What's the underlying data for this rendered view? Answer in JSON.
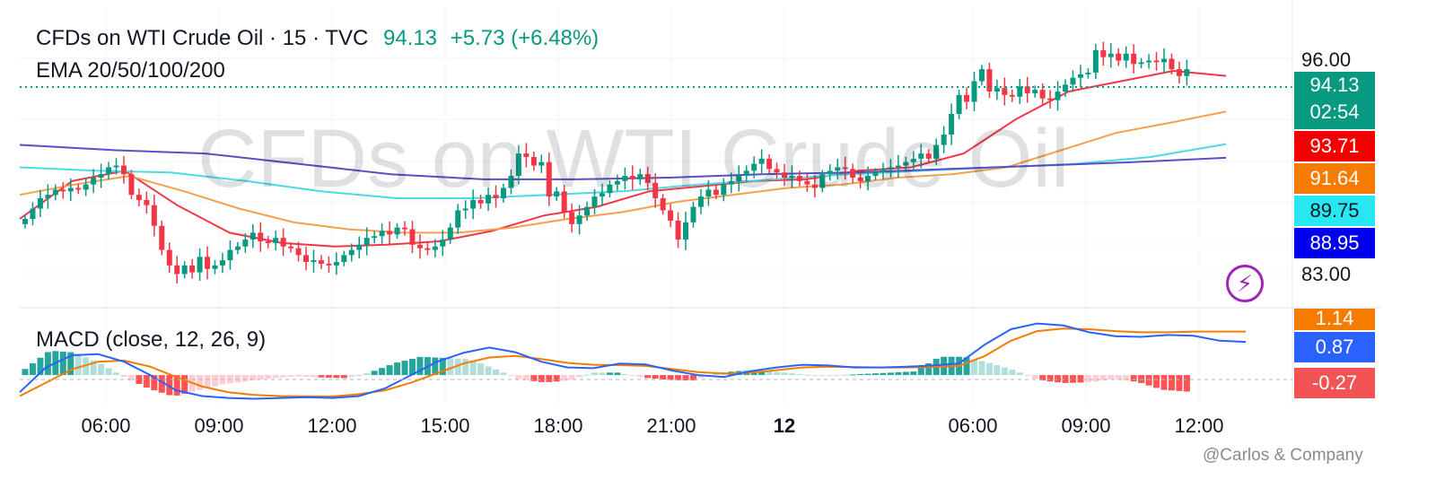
{
  "header": {
    "symbol": "CFDs on WTI Crude Oil · 15 · TVC",
    "last": "94.13",
    "change": "+5.73 (+6.48%)",
    "indicator": "EMA 20/50/100/200",
    "macd_label": "MACD (close, 12, 26, 9)"
  },
  "watermark": "CFDs on WTI Crude Oil",
  "credit": "@Carlos & Company",
  "price_axis": {
    "labels": [
      "96.00",
      "83.00"
    ],
    "tags": [
      {
        "text": "94.13",
        "sub": "02:54",
        "color": "#089981"
      },
      {
        "text": "93.71",
        "color": "#f20000"
      },
      {
        "text": "91.64",
        "color": "#f57c00"
      },
      {
        "text": "89.75",
        "color": "#26e7f2"
      },
      {
        "text": "88.95",
        "color": "#0000ee"
      }
    ]
  },
  "macd_axis": {
    "tags": [
      {
        "text": "1.14",
        "color": "#f57c00"
      },
      {
        "text": "0.87",
        "color": "#2962ff"
      },
      {
        "text": "-0.27",
        "color": "#f25455"
      }
    ]
  },
  "time_axis": [
    {
      "label": "06:00",
      "bold": false
    },
    {
      "label": "09:00",
      "bold": false
    },
    {
      "label": "12:00",
      "bold": false
    },
    {
      "label": "15:00",
      "bold": false
    },
    {
      "label": "18:00",
      "bold": false
    },
    {
      "label": "21:00",
      "bold": false
    },
    {
      "label": "12",
      "bold": true
    },
    {
      "label": "06:00",
      "bold": false
    },
    {
      "label": "09:00",
      "bold": false
    },
    {
      "label": "12:00",
      "bold": false
    }
  ],
  "chart_data": {
    "type": "candlestick",
    "interval": "15",
    "ylim": [
      80.4,
      97.7
    ],
    "last_price": 94.13,
    "close": [
      85.4,
      86.0,
      86.6,
      86.8,
      87.1,
      87.0,
      87.2,
      87.1,
      87.4,
      87.8,
      88.0,
      88.4,
      88.5,
      88.0,
      86.8,
      86.5,
      86.2,
      85.0,
      83.6,
      82.7,
      82.2,
      82.7,
      82.3,
      83.2,
      82.5,
      82.7,
      83.0,
      83.6,
      83.8,
      84.2,
      84.6,
      84.1,
      84.0,
      84.3,
      83.8,
      83.7,
      83.3,
      82.9,
      83.0,
      82.8,
      82.7,
      82.9,
      83.3,
      83.6,
      83.9,
      84.3,
      84.4,
      84.7,
      84.5,
      84.9,
      84.8,
      83.9,
      83.7,
      83.6,
      83.8,
      84.2,
      84.9,
      85.9,
      86.0,
      86.5,
      86.3,
      86.8,
      86.6,
      87.2,
      87.9,
      89.2,
      89.0,
      88.5,
      88.7,
      86.7,
      87.0,
      85.8,
      85.1,
      85.6,
      86.1,
      86.7,
      86.9,
      87.4,
      87.6,
      87.9,
      87.7,
      88.0,
      87.5,
      86.6,
      85.9,
      85.3,
      84.2,
      85.2,
      86.1,
      86.7,
      87.1,
      86.8,
      87.4,
      87.6,
      87.9,
      88.2,
      88.6,
      88.9,
      88.3,
      88.1,
      87.8,
      87.9,
      87.6,
      87.4,
      87.2,
      88.0,
      88.2,
      88.4,
      88.3,
      87.8,
      87.6,
      87.9,
      88.1,
      88.3,
      88.4,
      88.5,
      88.7,
      88.9,
      89.2,
      88.9,
      89.7,
      90.3,
      91.5,
      92.6,
      92.2,
      93.4,
      94.1,
      92.8,
      93.0,
      92.6,
      92.5,
      93.1,
      92.7,
      92.9,
      92.4,
      92.3,
      92.8,
      93.2,
      93.6,
      93.8,
      93.9,
      95.2,
      94.8,
      95.0,
      94.6,
      95.0,
      94.4,
      94.5,
      94.6,
      94.5,
      94.7,
      94.1,
      93.7,
      94.1
    ],
    "ema": [
      {
        "name": "EMA 20",
        "color": "#f23645",
        "last": 93.71,
        "values": [
          85.4,
          87.6,
          88.2,
          86.2,
          84.6,
          84.0,
          83.8,
          83.9,
          84.1,
          84.7,
          85.6,
          86.1,
          87.0,
          87.3,
          87.6,
          87.7,
          88.2,
          88.4,
          89.2,
          91.2,
          92.8,
          93.4,
          94.0,
          93.71
        ]
      },
      {
        "name": "EMA 50",
        "color": "#f5a04c",
        "last": 91.64,
        "values": [
          86.8,
          87.4,
          87.9,
          87.0,
          86.0,
          85.2,
          84.8,
          84.6,
          84.6,
          84.9,
          85.4,
          85.8,
          86.4,
          86.8,
          87.2,
          87.4,
          87.8,
          88.0,
          88.4,
          89.4,
          90.4,
          91.0,
          91.64
        ]
      },
      {
        "name": "EMA 100",
        "color": "#4dd9e5",
        "last": 89.75,
        "values": [
          88.4,
          88.2,
          88.1,
          87.6,
          87.0,
          86.6,
          86.6,
          86.8,
          87.0,
          87.4,
          87.7,
          88.0,
          88.2,
          88.4,
          88.6,
          89.0,
          89.75
        ]
      },
      {
        "name": "EMA 200",
        "color": "#5b4fc4",
        "last": 88.95,
        "values": [
          89.7,
          89.4,
          89.2,
          88.6,
          88.0,
          87.7,
          87.7,
          87.8,
          88.0,
          88.1,
          88.3,
          88.5,
          88.7,
          88.95
        ]
      }
    ],
    "macd": {
      "params": "close, 12, 26, 9",
      "ylim": [
        -0.75,
        1.6
      ],
      "macd_line": {
        "color": "#2962ff",
        "last": 0.87,
        "values": [
          -0.45,
          0.2,
          0.52,
          0.55,
          0.35,
          0.0,
          -0.4,
          -0.55,
          -0.6,
          -0.62,
          -0.6,
          -0.58,
          -0.6,
          -0.55,
          -0.35,
          0.0,
          0.35,
          0.58,
          0.72,
          0.6,
          0.35,
          0.2,
          0.18,
          0.3,
          0.28,
          0.12,
          0.0,
          -0.05,
          0.1,
          0.2,
          0.27,
          0.25,
          0.2,
          0.2,
          0.22,
          0.25,
          0.3,
          0.8,
          1.2,
          1.35,
          1.3,
          1.12,
          1.02,
          1.0,
          1.05,
          1.03,
          0.9,
          0.87
        ]
      },
      "signal_line": {
        "color": "#f57c00",
        "last": 1.14,
        "values": [
          -0.55,
          -0.2,
          0.15,
          0.35,
          0.38,
          0.22,
          -0.05,
          -0.3,
          -0.45,
          -0.52,
          -0.55,
          -0.56,
          -0.56,
          -0.5,
          -0.4,
          -0.2,
          0.05,
          0.3,
          0.46,
          0.5,
          0.42,
          0.32,
          0.27,
          0.26,
          0.24,
          0.16,
          0.08,
          0.04,
          0.06,
          0.13,
          0.2,
          0.22,
          0.21,
          0.2,
          0.2,
          0.21,
          0.24,
          0.5,
          0.9,
          1.15,
          1.22,
          1.2,
          1.15,
          1.12,
          1.12,
          1.14,
          1.14,
          1.14
        ]
      },
      "histogram_last": -0.27
    }
  }
}
